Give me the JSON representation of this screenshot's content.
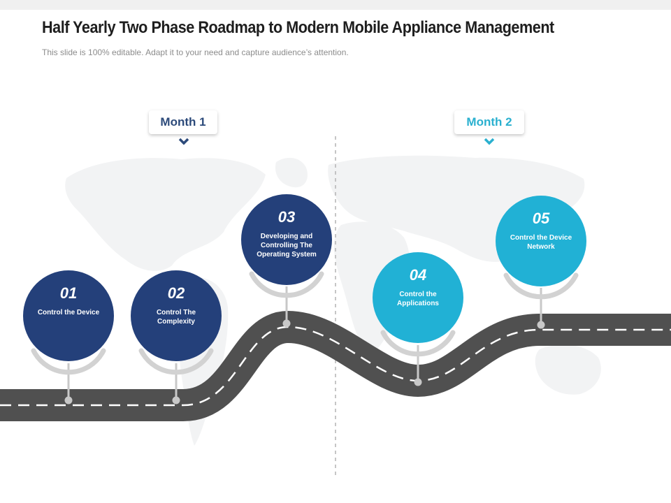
{
  "header": {
    "title": "Half Yearly Two Phase Roadmap to Modern Mobile Appliance Management",
    "subtitle": "This slide is 100% editable. Adapt it to your need and capture audience’s attention."
  },
  "phases": [
    {
      "label": "Month 1",
      "color": "#2c4a7a"
    },
    {
      "label": "Month 2",
      "color": "#2ab0cf"
    }
  ],
  "milestones": [
    {
      "number": "01",
      "label": "Control the Device",
      "color": "#24407a"
    },
    {
      "number": "02",
      "label": "Control The Complexity",
      "color": "#24407a"
    },
    {
      "number": "03",
      "label": "Developing and Controlling The Operating System",
      "color": "#24407a"
    },
    {
      "number": "04",
      "label": "Control the Applications",
      "color": "#21b1d5"
    },
    {
      "number": "05",
      "label": "Control the Device Network",
      "color": "#21b1d5"
    }
  ]
}
